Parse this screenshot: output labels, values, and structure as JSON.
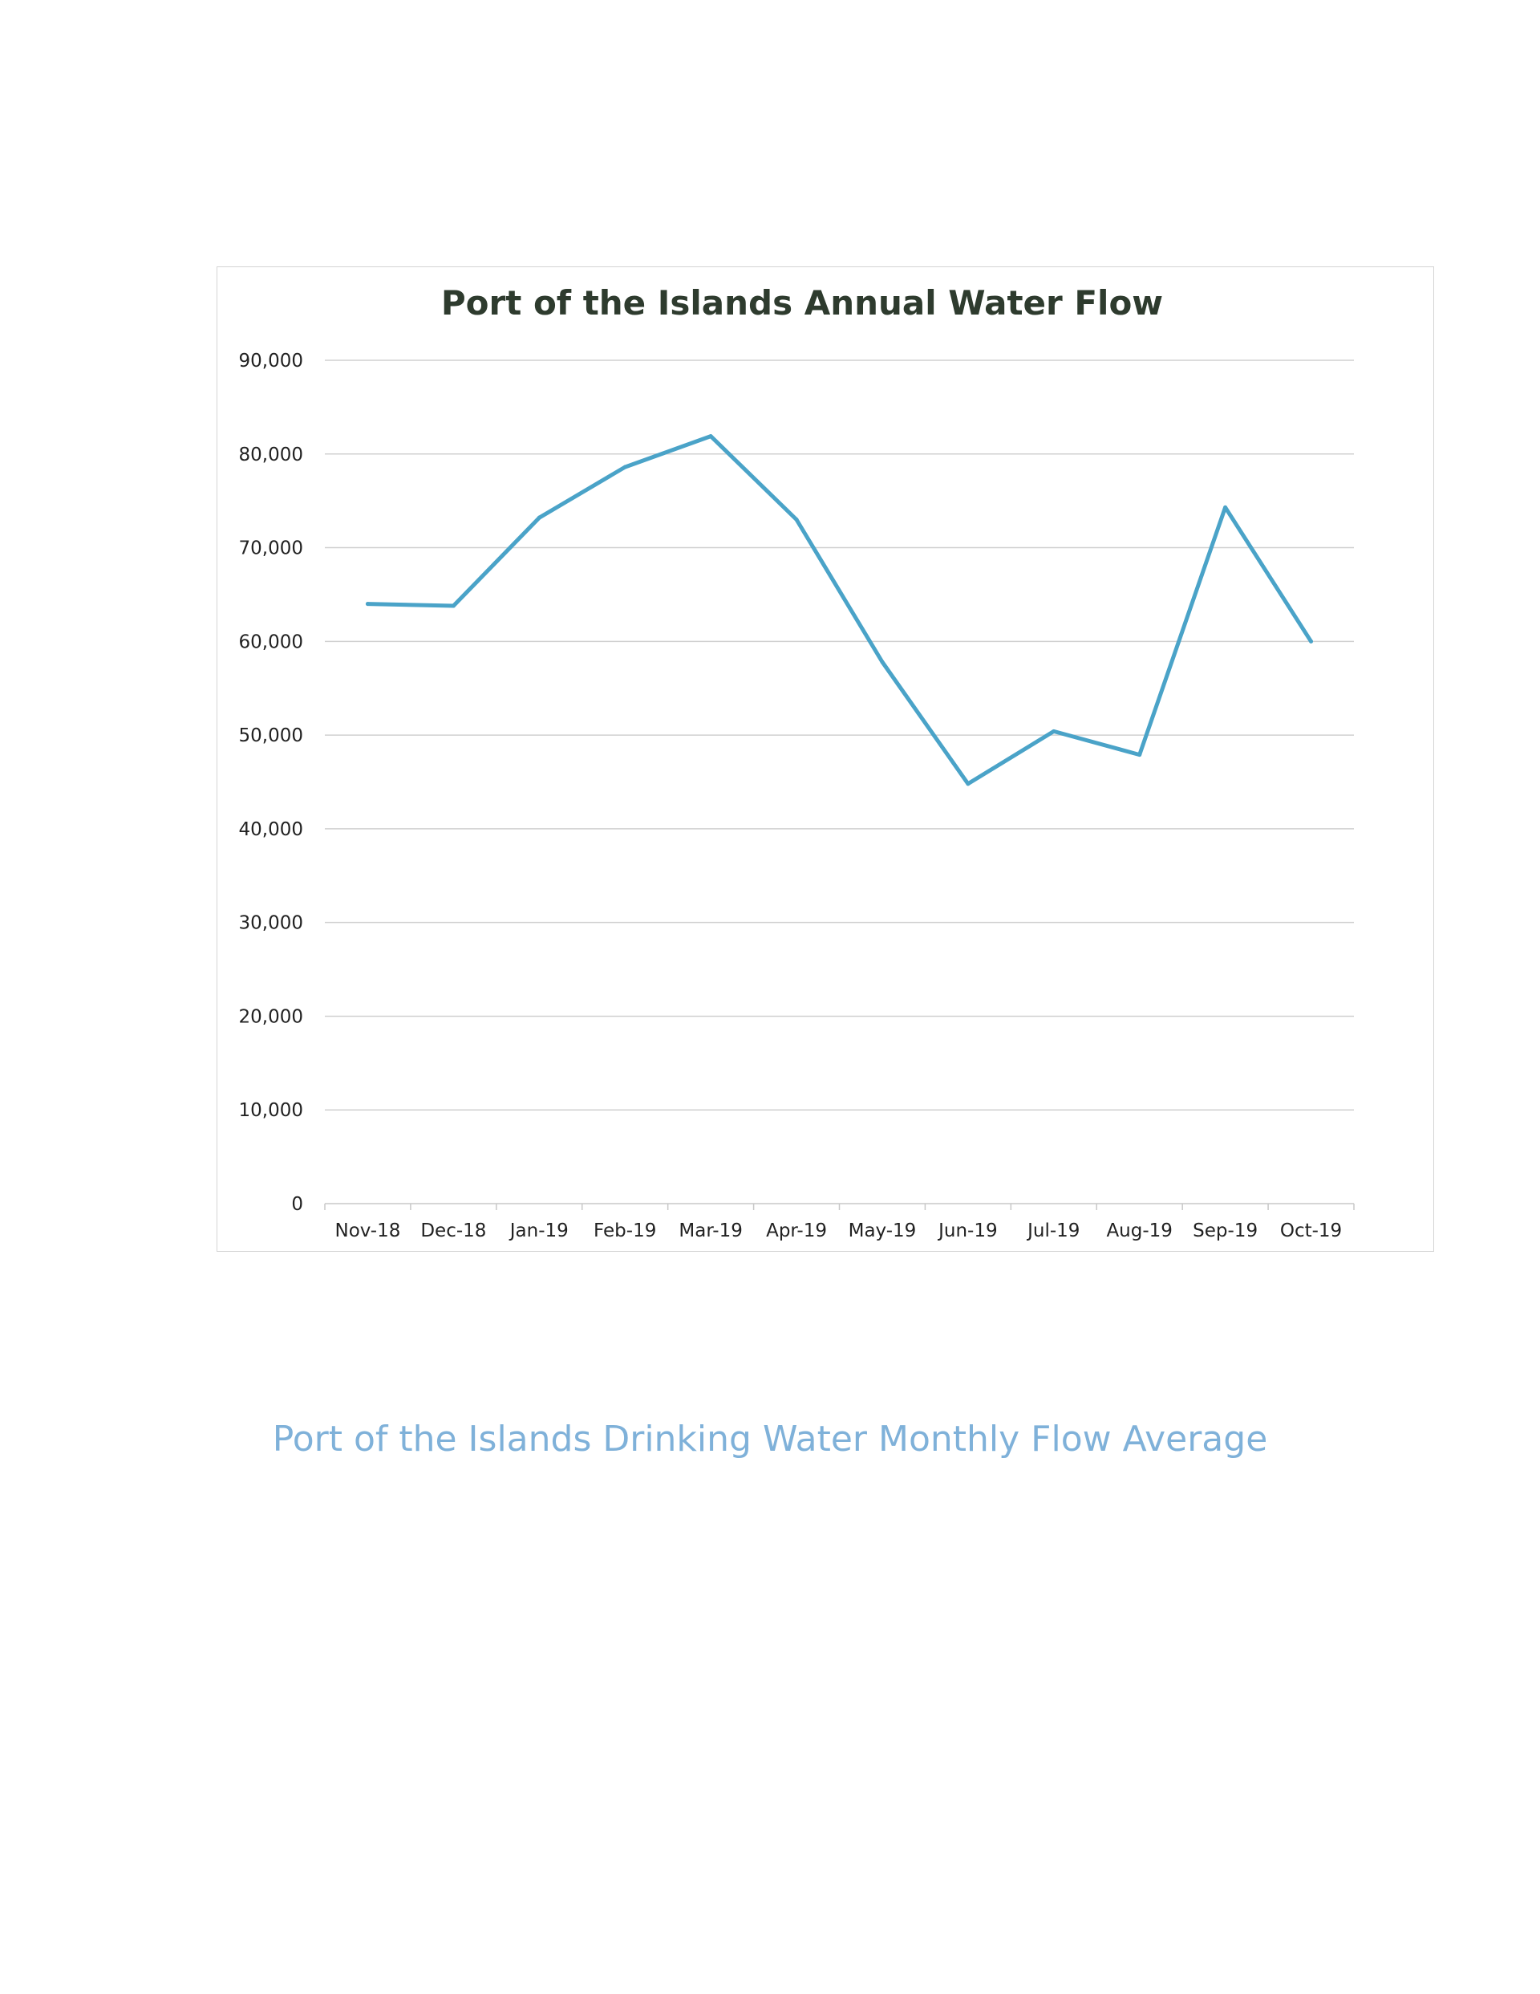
{
  "chart_data": {
    "type": "line",
    "title": "Port of the Islands Annual Water Flow",
    "xlabel": "",
    "ylabel": "",
    "categories": [
      "Nov-18",
      "Dec-18",
      "Jan-19",
      "Feb-19",
      "Mar-19",
      "Apr-19",
      "May-19",
      "Jun-19",
      "Jul-19",
      "Aug-19",
      "Sep-19",
      "Oct-19"
    ],
    "series": [
      {
        "values": [
          64000,
          63800,
          73200,
          78600,
          81900,
          73000,
          57800,
          44800,
          50400,
          47900,
          74300,
          60000
        ],
        "color": "#4aa3c8"
      }
    ],
    "ylim": [
      0,
      90000
    ],
    "yticks": [
      0,
      10000,
      20000,
      30000,
      40000,
      50000,
      60000,
      70000,
      80000,
      90000
    ],
    "ytick_labels": [
      "0",
      "10,000",
      "20,000",
      "30,000",
      "40,000",
      "50,000",
      "60,000",
      "70,000",
      "80,000",
      "90,000"
    ],
    "grid": true,
    "legend": "none"
  },
  "caption": "Port of the Islands Drinking Water Monthly Flow Average"
}
